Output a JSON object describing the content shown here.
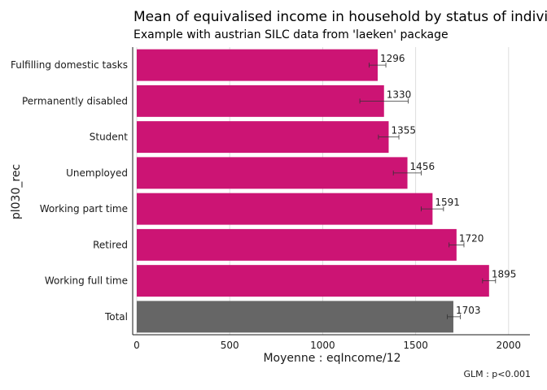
{
  "chart_data": {
    "type": "bar",
    "orientation": "horizontal",
    "title": "Mean of equivalised income in household by status of individuals",
    "subtitle": "Example with austrian SILC data from 'laeken' package",
    "xlabel": "Moyenne : eqIncome/12",
    "ylabel": "pl030_rec",
    "caption": "GLM : p<0.001",
    "xlim": [
      0,
      2100
    ],
    "xticks": [
      0,
      500,
      1000,
      1500,
      2000
    ],
    "grid": "vertical-major",
    "categories": [
      "Fulfilling domestic tasks",
      "Permanently disabled",
      "Student",
      "Unemployed",
      "Working part time",
      "Retired",
      "Working full time",
      "Total"
    ],
    "values": [
      1296,
      1330,
      1355,
      1456,
      1591,
      1720,
      1895,
      1703
    ],
    "labels": [
      "1296",
      "1330",
      "1355",
      "1456",
      "1591",
      "1720",
      "1895",
      "1703"
    ],
    "ci_low": [
      1250,
      1200,
      1300,
      1380,
      1530,
      1680,
      1860,
      1670
    ],
    "ci_high": [
      1340,
      1460,
      1410,
      1530,
      1650,
      1760,
      1930,
      1740
    ],
    "bar_colors": [
      "#cc1474",
      "#cc1474",
      "#cc1474",
      "#cc1474",
      "#cc1474",
      "#cc1474",
      "#cc1474",
      "#666666"
    ]
  }
}
